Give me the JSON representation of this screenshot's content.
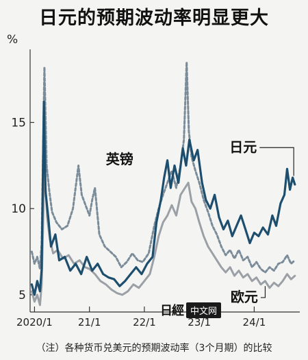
{
  "title": "日元的预期波动率明显更大",
  "unit": "%",
  "note": "（注）各种货币兑美元的预期波动率（3个月期）的比较",
  "logo": {
    "mark": "日經",
    "label": "中文网"
  },
  "colors": {
    "jpy": "#1d4e6e",
    "gbp": "#7a8c99",
    "eur": "#9aa0a6"
  },
  "chart_data": {
    "type": "line",
    "title": "日元的预期波动率明显更大",
    "ylabel": "%",
    "ylim": [
      4,
      19
    ],
    "yticks": [
      5,
      10,
      15
    ],
    "xlim": [
      2019.92,
      2024.83
    ],
    "xticks": [
      {
        "value": 2020.0,
        "label": "2020/1"
      },
      {
        "value": 2021.0,
        "label": "21/1"
      },
      {
        "value": 2022.0,
        "label": "22/1"
      },
      {
        "value": 2023.0,
        "label": "23/1"
      },
      {
        "value": 2024.0,
        "label": "24/1"
      }
    ],
    "series": [
      {
        "name": "日元",
        "key": "jpy",
        "style": "solid",
        "points": [
          [
            2019.95,
            5.6
          ],
          [
            2020.0,
            5.0
          ],
          [
            2020.05,
            5.8
          ],
          [
            2020.1,
            5.2
          ],
          [
            2020.13,
            6.5
          ],
          [
            2020.17,
            16.2
          ],
          [
            2020.2,
            11.0
          ],
          [
            2020.25,
            9.5
          ],
          [
            2020.3,
            7.8
          ],
          [
            2020.38,
            8.5
          ],
          [
            2020.45,
            7.0
          ],
          [
            2020.55,
            7.2
          ],
          [
            2020.65,
            6.4
          ],
          [
            2020.75,
            6.8
          ],
          [
            2020.85,
            6.2
          ],
          [
            2020.95,
            7.2
          ],
          [
            2021.05,
            6.4
          ],
          [
            2021.15,
            6.8
          ],
          [
            2021.25,
            6.2
          ],
          [
            2021.35,
            6.0
          ],
          [
            2021.45,
            5.9
          ],
          [
            2021.55,
            5.5
          ],
          [
            2021.65,
            5.8
          ],
          [
            2021.75,
            6.2
          ],
          [
            2021.85,
            6.6
          ],
          [
            2021.95,
            6.2
          ],
          [
            2022.05,
            6.8
          ],
          [
            2022.15,
            7.2
          ],
          [
            2022.22,
            9.2
          ],
          [
            2022.3,
            10.5
          ],
          [
            2022.36,
            11.8
          ],
          [
            2022.42,
            12.8
          ],
          [
            2022.48,
            11.2
          ],
          [
            2022.55,
            12.5
          ],
          [
            2022.62,
            11.5
          ],
          [
            2022.7,
            13.5
          ],
          [
            2022.76,
            12.5
          ],
          [
            2022.82,
            14.0
          ],
          [
            2022.9,
            12.8
          ],
          [
            2022.97,
            13.4
          ],
          [
            2023.05,
            11.5
          ],
          [
            2023.12,
            10.5
          ],
          [
            2023.2,
            10.0
          ],
          [
            2023.28,
            10.8
          ],
          [
            2023.36,
            9.5
          ],
          [
            2023.44,
            8.8
          ],
          [
            2023.52,
            9.3
          ],
          [
            2023.6,
            8.4
          ],
          [
            2023.68,
            9.0
          ],
          [
            2023.76,
            9.6
          ],
          [
            2023.84,
            8.8
          ],
          [
            2023.92,
            8.0
          ],
          [
            2024.0,
            8.6
          ],
          [
            2024.08,
            8.4
          ],
          [
            2024.16,
            8.9
          ],
          [
            2024.25,
            8.5
          ],
          [
            2024.33,
            9.6
          ],
          [
            2024.4,
            9.0
          ],
          [
            2024.48,
            10.3
          ],
          [
            2024.55,
            10.8
          ],
          [
            2024.6,
            12.3
          ],
          [
            2024.65,
            11.1
          ],
          [
            2024.7,
            11.8
          ],
          [
            2024.74,
            11.4
          ]
        ]
      },
      {
        "name": "英镑",
        "key": "gbp",
        "style": "dashed",
        "points": [
          [
            2019.95,
            7.5
          ],
          [
            2020.0,
            6.8
          ],
          [
            2020.05,
            7.2
          ],
          [
            2020.1,
            6.5
          ],
          [
            2020.13,
            8.0
          ],
          [
            2020.18,
            18.2
          ],
          [
            2020.22,
            12.5
          ],
          [
            2020.27,
            11.0
          ],
          [
            2020.32,
            9.8
          ],
          [
            2020.4,
            9.2
          ],
          [
            2020.5,
            8.8
          ],
          [
            2020.6,
            9.0
          ],
          [
            2020.7,
            10.0
          ],
          [
            2020.8,
            12.5
          ],
          [
            2020.86,
            10.8
          ],
          [
            2020.93,
            10.2
          ],
          [
            2021.0,
            9.6
          ],
          [
            2021.05,
            10.5
          ],
          [
            2021.1,
            11.2
          ],
          [
            2021.18,
            8.5
          ],
          [
            2021.28,
            7.8
          ],
          [
            2021.38,
            7.5
          ],
          [
            2021.48,
            7.2
          ],
          [
            2021.58,
            6.6
          ],
          [
            2021.68,
            6.9
          ],
          [
            2021.78,
            7.4
          ],
          [
            2021.88,
            7.0
          ],
          [
            2021.97,
            6.9
          ],
          [
            2022.08,
            7.4
          ],
          [
            2022.18,
            9.0
          ],
          [
            2022.26,
            10.0
          ],
          [
            2022.34,
            10.8
          ],
          [
            2022.42,
            11.5
          ],
          [
            2022.5,
            12.2
          ],
          [
            2022.58,
            11.2
          ],
          [
            2022.66,
            12.5
          ],
          [
            2022.72,
            14.0
          ],
          [
            2022.77,
            18.5
          ],
          [
            2022.81,
            14.5
          ],
          [
            2022.86,
            13.0
          ],
          [
            2022.93,
            12.2
          ],
          [
            2023.0,
            11.5
          ],
          [
            2023.08,
            10.5
          ],
          [
            2023.16,
            9.8
          ],
          [
            2023.24,
            9.0
          ],
          [
            2023.32,
            8.5
          ],
          [
            2023.4,
            7.8
          ],
          [
            2023.48,
            7.3
          ],
          [
            2023.56,
            7.6
          ],
          [
            2023.64,
            7.1
          ],
          [
            2023.72,
            7.6
          ],
          [
            2023.8,
            7.0
          ],
          [
            2023.88,
            7.2
          ],
          [
            2023.96,
            6.6
          ],
          [
            2024.04,
            6.9
          ],
          [
            2024.12,
            6.5
          ],
          [
            2024.2,
            6.3
          ],
          [
            2024.28,
            6.6
          ],
          [
            2024.36,
            6.4
          ],
          [
            2024.44,
            6.8
          ],
          [
            2024.52,
            6.9
          ],
          [
            2024.6,
            7.3
          ],
          [
            2024.67,
            6.8
          ],
          [
            2024.74,
            7.0
          ]
        ]
      },
      {
        "name": "欧元",
        "key": "eur",
        "style": "solid",
        "points": [
          [
            2019.95,
            5.2
          ],
          [
            2020.0,
            4.6
          ],
          [
            2020.05,
            5.0
          ],
          [
            2020.1,
            4.4
          ],
          [
            2020.13,
            5.6
          ],
          [
            2020.18,
            12.5
          ],
          [
            2020.23,
            9.5
          ],
          [
            2020.28,
            8.2
          ],
          [
            2020.34,
            7.4
          ],
          [
            2020.42,
            7.6
          ],
          [
            2020.52,
            7.1
          ],
          [
            2020.62,
            7.3
          ],
          [
            2020.72,
            6.8
          ],
          [
            2020.82,
            7.0
          ],
          [
            2020.92,
            6.6
          ],
          [
            2021.0,
            6.5
          ],
          [
            2021.1,
            6.2
          ],
          [
            2021.2,
            5.8
          ],
          [
            2021.3,
            5.6
          ],
          [
            2021.4,
            5.3
          ],
          [
            2021.5,
            5.1
          ],
          [
            2021.6,
            5.0
          ],
          [
            2021.7,
            5.2
          ],
          [
            2021.8,
            5.6
          ],
          [
            2021.9,
            5.4
          ],
          [
            2022.0,
            5.8
          ],
          [
            2022.1,
            6.2
          ],
          [
            2022.18,
            7.2
          ],
          [
            2022.26,
            8.4
          ],
          [
            2022.34,
            9.2
          ],
          [
            2022.42,
            9.6
          ],
          [
            2022.5,
            10.2
          ],
          [
            2022.58,
            9.6
          ],
          [
            2022.66,
            10.8
          ],
          [
            2022.74,
            11.2
          ],
          [
            2022.8,
            11.5
          ],
          [
            2022.86,
            10.4
          ],
          [
            2022.93,
            10.0
          ],
          [
            2023.0,
            9.2
          ],
          [
            2023.08,
            8.4
          ],
          [
            2023.16,
            7.8
          ],
          [
            2023.24,
            7.4
          ],
          [
            2023.32,
            7.0
          ],
          [
            2023.4,
            6.6
          ],
          [
            2023.48,
            6.3
          ],
          [
            2023.56,
            6.6
          ],
          [
            2023.64,
            6.1
          ],
          [
            2023.72,
            6.4
          ],
          [
            2023.8,
            6.0
          ],
          [
            2023.88,
            6.2
          ],
          [
            2023.96,
            5.8
          ],
          [
            2024.04,
            6.0
          ],
          [
            2024.12,
            5.6
          ],
          [
            2024.2,
            5.8
          ],
          [
            2024.28,
            5.4
          ],
          [
            2024.36,
            5.7
          ],
          [
            2024.44,
            5.5
          ],
          [
            2024.52,
            5.8
          ],
          [
            2024.6,
            6.2
          ],
          [
            2024.67,
            5.9
          ],
          [
            2024.74,
            6.1
          ]
        ]
      }
    ],
    "annotations": [
      {
        "text": "英镑",
        "series": "gbp",
        "x": 2021.3,
        "y": 12.6
      },
      {
        "text": "日元",
        "series": "jpy",
        "x": 2023.55,
        "y": 13.3
      },
      {
        "text": "欧元",
        "series": "eur",
        "x": 2023.57,
        "y": 4.6
      }
    ],
    "grid": false
  }
}
